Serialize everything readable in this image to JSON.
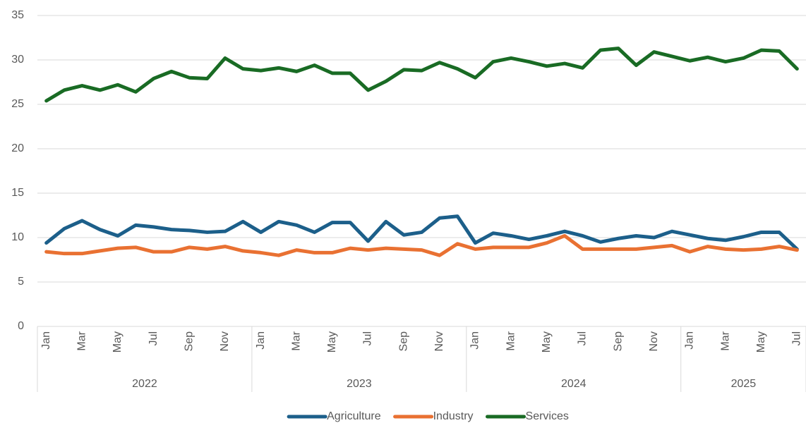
{
  "chart_data": {
    "type": "line",
    "categories": [
      "Jan",
      null,
      "Mar",
      null,
      "May",
      null,
      "Jul",
      null,
      "Sep",
      null,
      "Nov",
      null,
      "Jan",
      null,
      "Mar",
      null,
      "May",
      null,
      "Jul",
      null,
      "Sep",
      null,
      "Nov",
      null,
      "Jan",
      null,
      "Mar",
      null,
      "May",
      null,
      "Jul",
      null,
      "Sep",
      null,
      "Nov",
      null,
      "Jan",
      null,
      "Mar",
      null,
      "May",
      null,
      "Jul"
    ],
    "groups": [
      "2022",
      "2023",
      "2024",
      "2025"
    ],
    "series": [
      {
        "name": "Agriculture",
        "color": "#1c5f8a",
        "values": [
          9.4,
          11.0,
          11.9,
          10.9,
          10.2,
          11.4,
          11.2,
          10.9,
          10.8,
          10.6,
          10.7,
          11.8,
          10.6,
          11.8,
          11.4,
          10.6,
          11.7,
          11.7,
          9.6,
          11.8,
          10.3,
          10.6,
          12.2,
          12.4,
          9.4,
          10.5,
          10.2,
          9.8,
          10.2,
          10.7,
          10.2,
          9.5,
          9.9,
          10.2,
          10.0,
          10.7,
          10.3,
          9.9,
          9.7,
          10.1,
          10.6,
          10.6,
          8.7
        ]
      },
      {
        "name": "Industry",
        "color": "#e97132",
        "values": [
          8.4,
          8.2,
          8.2,
          8.5,
          8.8,
          8.9,
          8.4,
          8.4,
          8.9,
          8.7,
          9.0,
          8.5,
          8.3,
          8.0,
          8.6,
          8.3,
          8.3,
          8.8,
          8.6,
          8.8,
          8.7,
          8.6,
          8.0,
          9.3,
          8.7,
          8.9,
          8.9,
          8.9,
          9.4,
          10.2,
          8.7,
          8.7,
          8.7,
          8.7,
          8.9,
          9.1,
          8.4,
          9.0,
          8.7,
          8.6,
          8.7,
          9.0,
          8.6
        ]
      },
      {
        "name": "Services",
        "color": "#196b24",
        "values": [
          25.4,
          26.6,
          27.1,
          26.6,
          27.2,
          26.4,
          27.9,
          28.7,
          28.0,
          27.9,
          30.2,
          29.0,
          28.8,
          29.1,
          28.7,
          29.4,
          28.5,
          28.5,
          26.6,
          27.6,
          28.9,
          28.8,
          29.7,
          29.0,
          28.0,
          29.8,
          30.2,
          29.8,
          29.3,
          29.6,
          29.1,
          31.1,
          31.3,
          29.4,
          30.9,
          30.4,
          29.9,
          30.3,
          29.8,
          30.2,
          31.1,
          31.0,
          29.0
        ]
      }
    ],
    "ylim": [
      0,
      35
    ],
    "yticks": [
      0,
      5,
      10,
      15,
      20,
      25,
      30,
      35
    ],
    "grid": true,
    "legend": "bottom"
  }
}
